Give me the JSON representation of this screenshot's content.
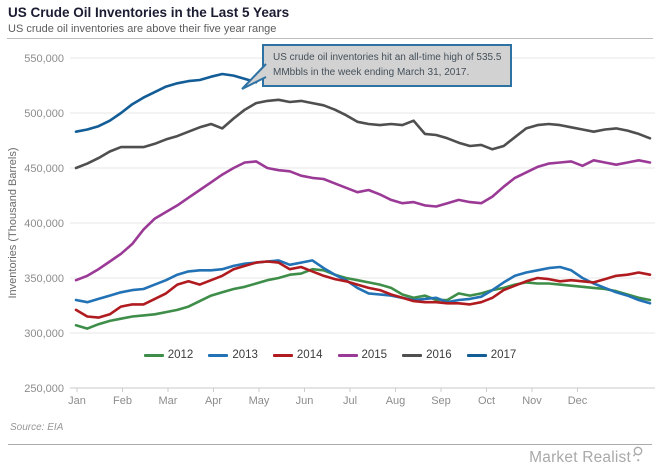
{
  "header": {
    "title": "US Crude Oil Inventories in the Last 5 Years",
    "subtitle": "US crude oil inventories are above their five year range"
  },
  "annotation": {
    "lines": [
      "US crude oil inventories hit an all-time high of 535.5",
      "MMbbls in the week ending March 31, 2017."
    ],
    "full_text": "US crude oil inventories hit an all-time high of 535.5 MMbbls in the week ending March 31, 2017.",
    "box_fill": "#d2d2d2",
    "box_border": "#2e72a3",
    "points_to": "2017 series peak, week ending March 31, 2017"
  },
  "footer": {
    "source": "Source: EIA",
    "brand": "Market Realist",
    "brand_icon": "magnifier-icon"
  },
  "chart_data": {
    "type": "line",
    "title": "US Crude Oil Inventories in the Last 5 Years",
    "subtitle": "US crude oil inventories are above their five year range",
    "xlabel": "",
    "ylabel": "Inventories (Thousand  Barrels)",
    "x_resolution": "weekly (52 points per year; 2017 partial through late April)",
    "categories_x": [
      "Jan",
      "Feb",
      "Mar",
      "Apr",
      "May",
      "Jun",
      "Jul",
      "Aug",
      "Sep",
      "Oct",
      "Nov",
      "Dec"
    ],
    "y_tick_labels": [
      "550,000",
      "500,000",
      "450,000",
      "400,000",
      "350,000",
      "300,000",
      "250,000"
    ],
    "ylim": [
      250000,
      550000
    ],
    "y_tick_step": 50000,
    "grid": "horizontal",
    "legend_position": "bottom-center-inside",
    "all_time_high": 535500,
    "series": [
      {
        "name": "2012",
        "color": "#3e8e49",
        "values": [
          307000,
          304000,
          308000,
          311000,
          313000,
          315000,
          316000,
          317000,
          319000,
          321000,
          324000,
          329000,
          334000,
          337000,
          340000,
          342000,
          345000,
          348000,
          350000,
          353000,
          354000,
          358000,
          357000,
          353000,
          350000,
          348000,
          346000,
          344000,
          341000,
          335000,
          332000,
          334000,
          330000,
          330000,
          336000,
          334000,
          336000,
          339000,
          341000,
          344000,
          346000,
          345000,
          345000,
          344000,
          343000,
          342000,
          341000,
          340000,
          338000,
          335000,
          332000,
          330000
        ]
      },
      {
        "name": "2013",
        "color": "#2272b5",
        "values": [
          330000,
          328000,
          331000,
          334000,
          337000,
          339000,
          340000,
          344000,
          348000,
          353000,
          356000,
          357000,
          357000,
          358000,
          361000,
          363000,
          364000,
          365000,
          366000,
          362000,
          364000,
          366000,
          359000,
          353000,
          348000,
          341000,
          336000,
          335000,
          334000,
          332000,
          330000,
          331000,
          332000,
          328000,
          330000,
          331000,
          333000,
          339000,
          346000,
          352000,
          355000,
          357000,
          359000,
          360000,
          357000,
          350000,
          345000,
          341000,
          337000,
          334000,
          330000,
          327000
        ]
      },
      {
        "name": "2014",
        "color": "#b01b20",
        "values": [
          321000,
          315000,
          314000,
          317000,
          324000,
          326000,
          326000,
          331000,
          336000,
          344000,
          347000,
          344000,
          348000,
          352000,
          358000,
          361000,
          364000,
          365000,
          364000,
          358000,
          360000,
          356000,
          352000,
          349000,
          347000,
          344000,
          341000,
          339000,
          335000,
          332000,
          329000,
          328000,
          328000,
          327000,
          327000,
          326000,
          328000,
          332000,
          339000,
          343000,
          347000,
          350000,
          349000,
          347000,
          348000,
          347000,
          346000,
          349000,
          352000,
          353000,
          355000,
          353000
        ]
      },
      {
        "name": "2015",
        "color": "#9b3a96",
        "values": [
          348000,
          352000,
          358000,
          365000,
          372000,
          381000,
          394000,
          404000,
          410000,
          416000,
          423000,
          430000,
          437000,
          444000,
          450000,
          455000,
          456000,
          450000,
          448000,
          447000,
          443000,
          441000,
          440000,
          436000,
          432000,
          428000,
          430000,
          426000,
          421000,
          418000,
          419000,
          416000,
          415000,
          418000,
          421000,
          419000,
          418000,
          424000,
          433000,
          441000,
          446000,
          451000,
          454000,
          455000,
          456000,
          452000,
          457000,
          455000,
          453000,
          455000,
          457000,
          455000
        ]
      },
      {
        "name": "2016",
        "color": "#4f4f4f",
        "values": [
          450000,
          454000,
          459000,
          465000,
          469000,
          469000,
          469000,
          472000,
          476000,
          479000,
          483000,
          487000,
          490000,
          486000,
          495000,
          503000,
          509000,
          511000,
          512000,
          510000,
          511000,
          509000,
          507000,
          503000,
          498000,
          492000,
          490000,
          489000,
          490000,
          489000,
          493000,
          481000,
          480000,
          477000,
          473000,
          470000,
          471000,
          467000,
          470000,
          478000,
          486000,
          489000,
          490000,
          489000,
          487000,
          485000,
          483000,
          485000,
          486000,
          484000,
          481000,
          477000
        ]
      },
      {
        "name": "2017",
        "color": "#135d97",
        "values": [
          483000,
          485000,
          488000,
          493000,
          500000,
          508000,
          514000,
          519000,
          524000,
          527000,
          529000,
          530000,
          533000,
          535500,
          534000,
          531000,
          528000
        ]
      }
    ],
    "annotation": "US crude oil inventories hit an all-time high of 535.5 MMbbls in the week ending March 31, 2017."
  }
}
